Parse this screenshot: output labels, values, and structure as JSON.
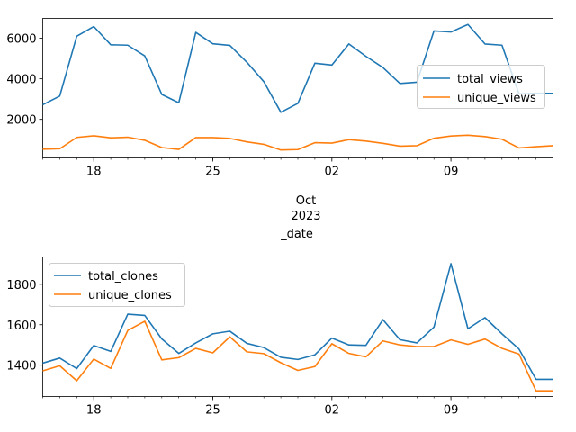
{
  "chart_data": [
    {
      "type": "line",
      "dates": [
        "2023-09-15",
        "2023-09-16",
        "2023-09-17",
        "2023-09-18",
        "2023-09-19",
        "2023-09-20",
        "2023-09-21",
        "2023-09-22",
        "2023-09-23",
        "2023-09-24",
        "2023-09-25",
        "2023-09-26",
        "2023-09-27",
        "2023-09-28",
        "2023-09-29",
        "2023-09-30",
        "2023-10-01",
        "2023-10-02",
        "2023-10-03",
        "2023-10-04",
        "2023-10-05",
        "2023-10-06",
        "2023-10-07",
        "2023-10-08",
        "2023-10-09",
        "2023-10-10",
        "2023-10-11",
        "2023-10-12",
        "2023-10-13",
        "2023-10-14",
        "2023-10-15"
      ],
      "series": [
        {
          "name": "total_views",
          "color": "#1f77b4",
          "values": [
            2720,
            3150,
            6100,
            6580,
            5680,
            5660,
            5130,
            3230,
            2820,
            6290,
            5730,
            5650,
            4820,
            3860,
            2350,
            2790,
            4770,
            4680,
            5720,
            5110,
            4560,
            3770,
            3830,
            6360,
            6310,
            6680,
            5720,
            5660,
            3260,
            3290,
            3280
          ]
        },
        {
          "name": "unique_views",
          "color": "#ff7f0e",
          "values": [
            530,
            550,
            1110,
            1190,
            1090,
            1120,
            970,
            610,
            520,
            1100,
            1100,
            1060,
            890,
            770,
            490,
            510,
            850,
            830,
            1000,
            930,
            820,
            680,
            700,
            1070,
            1180,
            1220,
            1150,
            1020,
            590,
            650,
            700
          ]
        }
      ],
      "xlabel": "_date",
      "x_ticks": [
        "18",
        "25",
        "02",
        "09"
      ],
      "x_tick_dates": [
        "2023-09-18",
        "2023-09-25",
        "2023-10-02",
        "2023-10-09"
      ],
      "x_secondary_label": [
        "Oct",
        "2023"
      ],
      "y_ticks": [
        2000,
        4000,
        6000
      ],
      "ylim": [
        100,
        6980
      ],
      "legend": "center-right"
    },
    {
      "type": "line",
      "dates": [
        "2023-09-15",
        "2023-09-16",
        "2023-09-17",
        "2023-09-18",
        "2023-09-19",
        "2023-09-20",
        "2023-09-21",
        "2023-09-22",
        "2023-09-23",
        "2023-09-24",
        "2023-09-25",
        "2023-09-26",
        "2023-09-27",
        "2023-09-28",
        "2023-09-29",
        "2023-09-30",
        "2023-10-01",
        "2023-10-02",
        "2023-10-03",
        "2023-10-04",
        "2023-10-05",
        "2023-10-06",
        "2023-10-07",
        "2023-10-08",
        "2023-10-09",
        "2023-10-10",
        "2023-10-11",
        "2023-10-12",
        "2023-10-13",
        "2023-10-14",
        "2023-10-15"
      ],
      "series": [
        {
          "name": "total_clones",
          "color": "#1f77b4",
          "values": [
            1410,
            1435,
            1383,
            1497,
            1468,
            1652,
            1646,
            1530,
            1458,
            1510,
            1555,
            1568,
            1508,
            1487,
            1439,
            1428,
            1451,
            1534,
            1500,
            1498,
            1625,
            1526,
            1510,
            1588,
            1902,
            1580,
            1635,
            1555,
            1480,
            1330,
            1330
          ]
        },
        {
          "name": "unique_clones",
          "color": "#ff7f0e",
          "values": [
            1372,
            1397,
            1323,
            1430,
            1384,
            1572,
            1617,
            1426,
            1437,
            1483,
            1461,
            1540,
            1466,
            1457,
            1412,
            1374,
            1393,
            1506,
            1458,
            1441,
            1520,
            1500,
            1492,
            1492,
            1525,
            1503,
            1529,
            1483,
            1455,
            1273,
            1273
          ]
        }
      ],
      "x_ticks": [
        "18",
        "25",
        "02",
        "09"
      ],
      "x_tick_dates": [
        "2023-09-18",
        "2023-09-25",
        "2023-10-02",
        "2023-10-09"
      ],
      "y_ticks": [
        1400,
        1600,
        1800
      ],
      "ylim": [
        1245,
        1935
      ],
      "legend": "top-left"
    }
  ]
}
